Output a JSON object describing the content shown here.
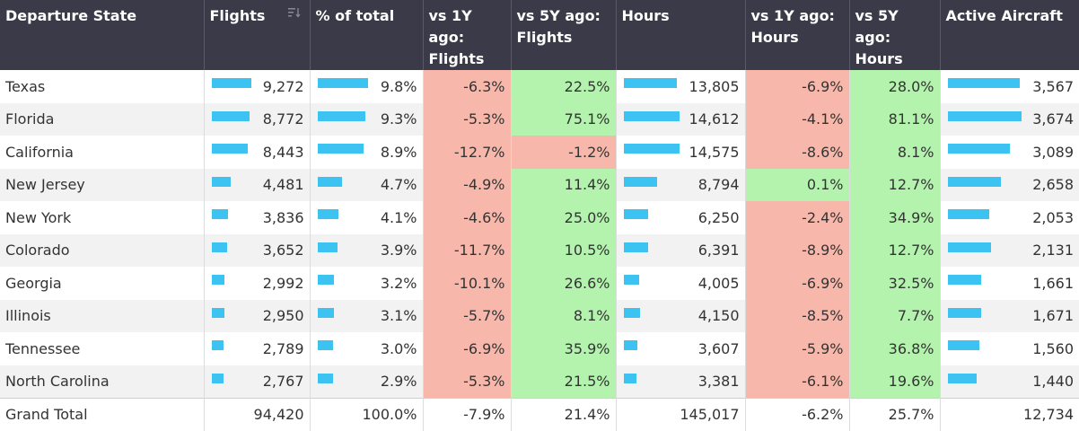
{
  "headers": {
    "state": "Departure State",
    "flights": "Flights",
    "pct": "% of total",
    "f1y": [
      "vs 1Y ago:",
      "Flights"
    ],
    "f5y": [
      "vs 5Y ago:",
      "Flights"
    ],
    "hours": "Hours",
    "h1y": [
      "vs 1Y ago:",
      "Hours"
    ],
    "h5y": [
      "vs 5Y ago:",
      "Hours"
    ],
    "aircraft": "Active Aircraft"
  },
  "colors": {
    "bar": "#3dc3f2",
    "negative": "#f7b8ab",
    "positive": "#b3f3ad",
    "header_bg": "#3b3a48"
  },
  "rows": [
    {
      "state": "Texas",
      "flights": "9,272",
      "flights_n": 9272,
      "pct": "9.8%",
      "pct_n": 9.8,
      "f1y": "-6.3%",
      "f5y": "22.5%",
      "hours": "13,805",
      "hours_n": 13805,
      "h1y": "-6.9%",
      "h5y": "28.0%",
      "aircraft": "3,567",
      "aircraft_n": 3567
    },
    {
      "state": "Florida",
      "flights": "8,772",
      "flights_n": 8772,
      "pct": "9.3%",
      "pct_n": 9.3,
      "f1y": "-5.3%",
      "f5y": "75.1%",
      "hours": "14,612",
      "hours_n": 14612,
      "h1y": "-4.1%",
      "h5y": "81.1%",
      "aircraft": "3,674",
      "aircraft_n": 3674
    },
    {
      "state": "California",
      "flights": "8,443",
      "flights_n": 8443,
      "pct": "8.9%",
      "pct_n": 8.9,
      "f1y": "-12.7%",
      "f5y": "-1.2%",
      "hours": "14,575",
      "hours_n": 14575,
      "h1y": "-8.6%",
      "h5y": "8.1%",
      "aircraft": "3,089",
      "aircraft_n": 3089
    },
    {
      "state": "New Jersey",
      "flights": "4,481",
      "flights_n": 4481,
      "pct": "4.7%",
      "pct_n": 4.7,
      "f1y": "-4.9%",
      "f5y": "11.4%",
      "hours": "8,794",
      "hours_n": 8794,
      "h1y": "0.1%",
      "h5y": "12.7%",
      "aircraft": "2,658",
      "aircraft_n": 2658
    },
    {
      "state": "New York",
      "flights": "3,836",
      "flights_n": 3836,
      "pct": "4.1%",
      "pct_n": 4.1,
      "f1y": "-4.6%",
      "f5y": "25.0%",
      "hours": "6,250",
      "hours_n": 6250,
      "h1y": "-2.4%",
      "h5y": "34.9%",
      "aircraft": "2,053",
      "aircraft_n": 2053
    },
    {
      "state": "Colorado",
      "flights": "3,652",
      "flights_n": 3652,
      "pct": "3.9%",
      "pct_n": 3.9,
      "f1y": "-11.7%",
      "f5y": "10.5%",
      "hours": "6,391",
      "hours_n": 6391,
      "h1y": "-8.9%",
      "h5y": "12.7%",
      "aircraft": "2,131",
      "aircraft_n": 2131
    },
    {
      "state": "Georgia",
      "flights": "2,992",
      "flights_n": 2992,
      "pct": "3.2%",
      "pct_n": 3.2,
      "f1y": "-10.1%",
      "f5y": "26.6%",
      "hours": "4,005",
      "hours_n": 4005,
      "h1y": "-6.9%",
      "h5y": "32.5%",
      "aircraft": "1,661",
      "aircraft_n": 1661
    },
    {
      "state": "Illinois",
      "flights": "2,950",
      "flights_n": 2950,
      "pct": "3.1%",
      "pct_n": 3.1,
      "f1y": "-5.7%",
      "f5y": "8.1%",
      "hours": "4,150",
      "hours_n": 4150,
      "h1y": "-8.5%",
      "h5y": "7.7%",
      "aircraft": "1,671",
      "aircraft_n": 1671
    },
    {
      "state": "Tennessee",
      "flights": "2,789",
      "flights_n": 2789,
      "pct": "3.0%",
      "pct_n": 3.0,
      "f1y": "-6.9%",
      "f5y": "35.9%",
      "hours": "3,607",
      "hours_n": 3607,
      "h1y": "-5.9%",
      "h5y": "36.8%",
      "aircraft": "1,560",
      "aircraft_n": 1560
    },
    {
      "state": "North Carolina",
      "flights": "2,767",
      "flights_n": 2767,
      "pct": "2.9%",
      "pct_n": 2.9,
      "f1y": "-5.3%",
      "f5y": "21.5%",
      "hours": "3,381",
      "hours_n": 3381,
      "h1y": "-6.1%",
      "h5y": "19.6%",
      "aircraft": "1,440",
      "aircraft_n": 1440
    }
  ],
  "total": {
    "label": "Grand Total",
    "flights": "94,420",
    "pct": "100.0%",
    "f1y": "-7.9%",
    "f5y": "21.4%",
    "hours": "145,017",
    "h1y": "-6.2%",
    "h5y": "25.7%",
    "aircraft": "12,734"
  },
  "sort_icon": "sort-descending-icon"
}
